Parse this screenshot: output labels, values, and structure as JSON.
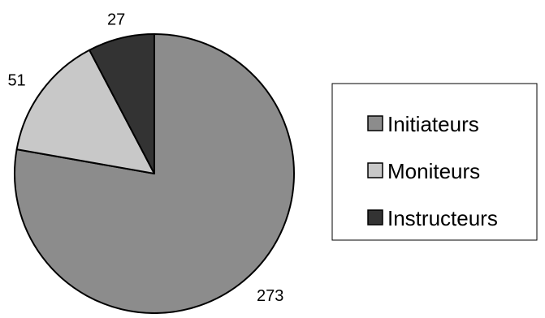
{
  "chart_data": {
    "type": "pie",
    "start_angle": "12 o'clock",
    "direction": "clockwise",
    "legend_placement": "right",
    "slices": [
      {
        "label": "Initiateurs",
        "value": 273,
        "color": "#8c8c8c"
      },
      {
        "label": "Moniteurs",
        "value": 51,
        "color": "#c8c8c8"
      },
      {
        "label": "Instructeurs",
        "value": 27,
        "color": "#333333"
      }
    ]
  }
}
